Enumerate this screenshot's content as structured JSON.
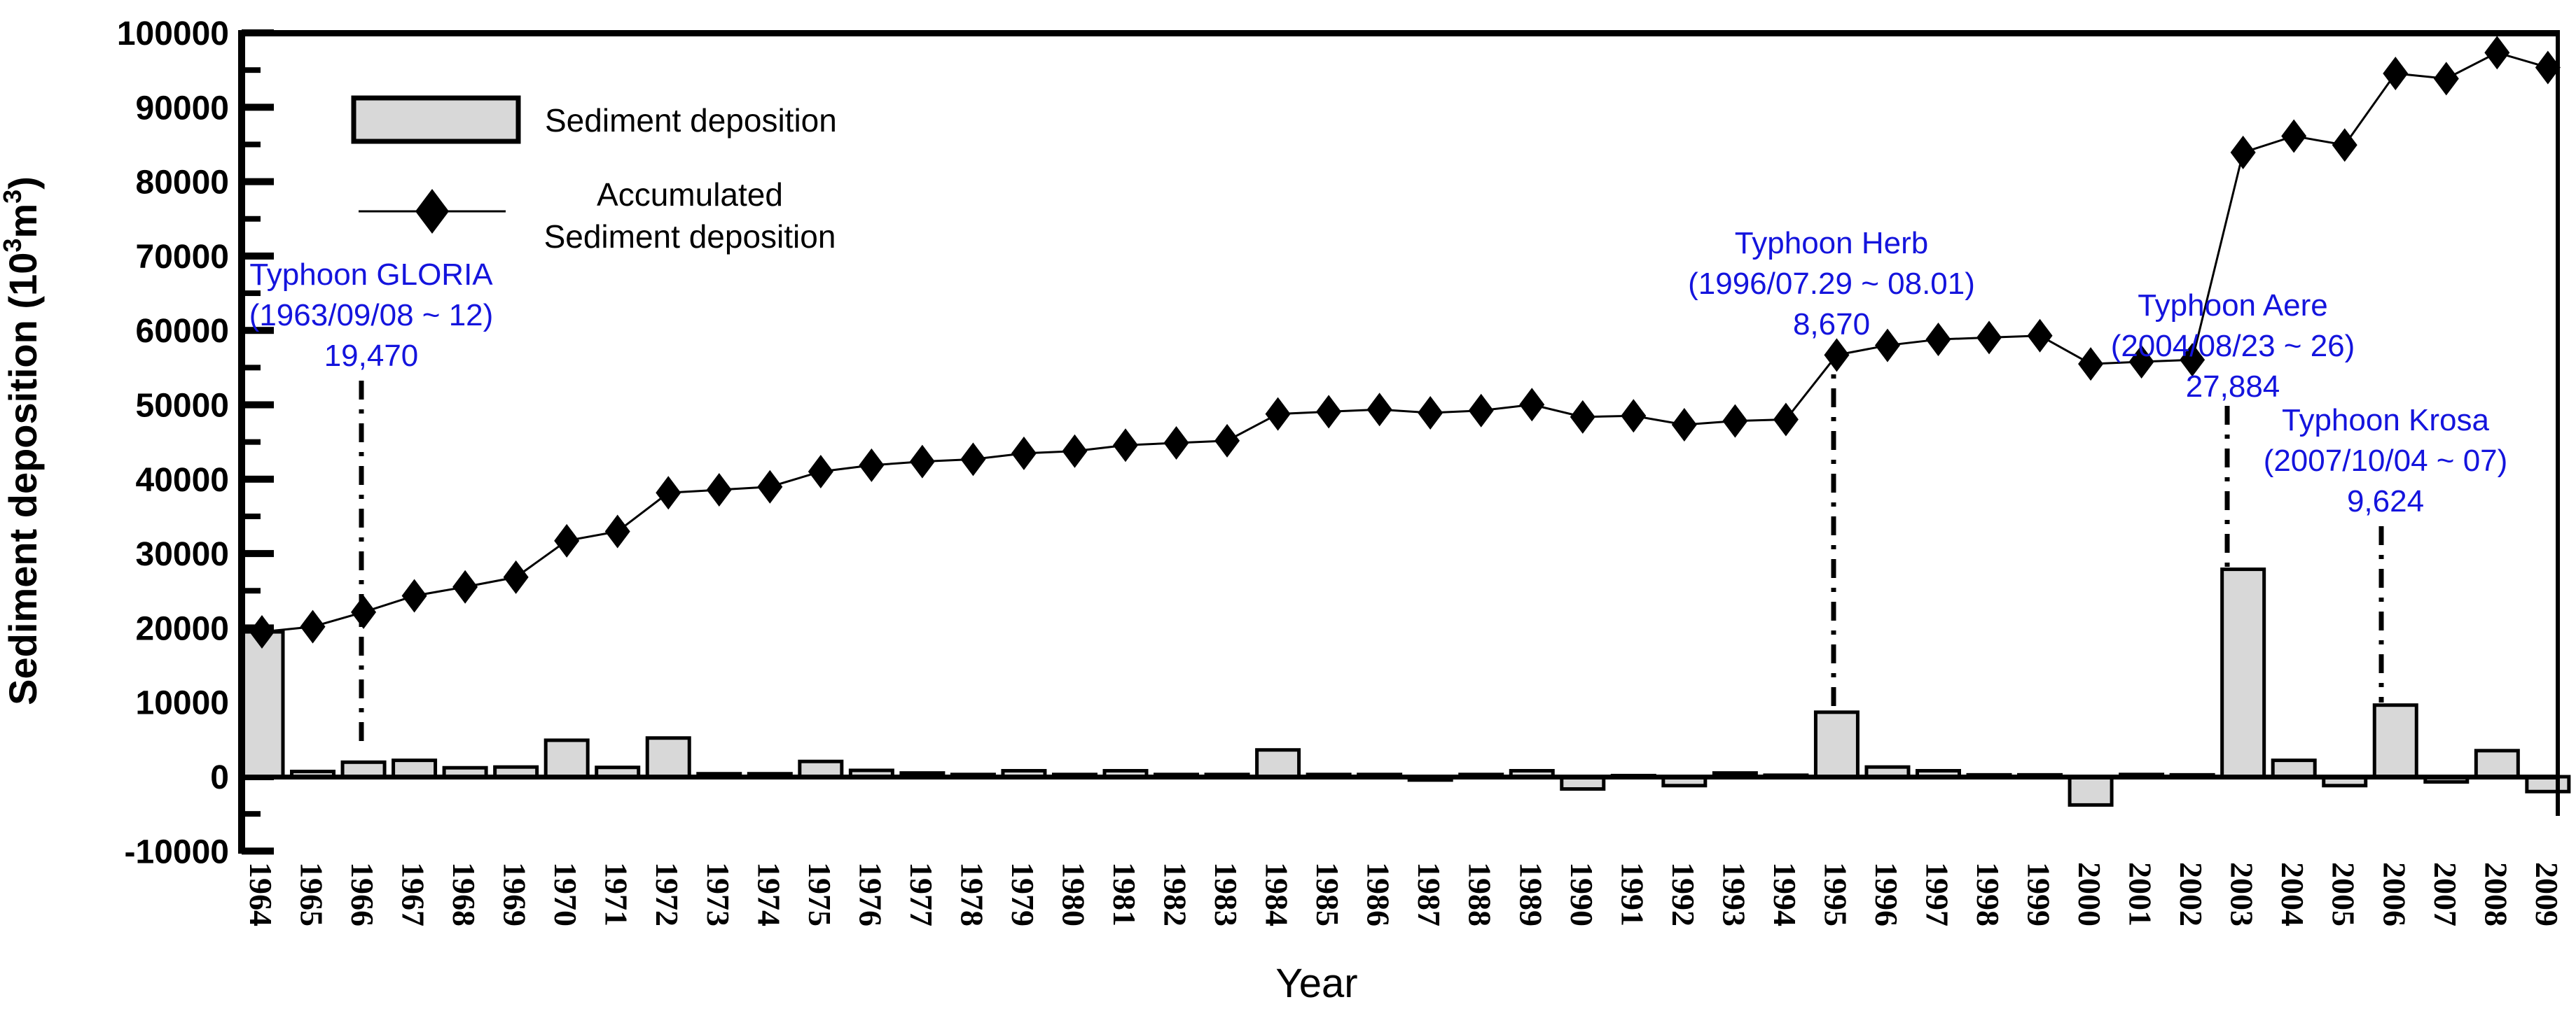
{
  "chart_data": {
    "type": "bar+line",
    "title": "",
    "xlabel": "Year",
    "ylabel_parts": [
      "Sediment deposition (10",
      "3",
      "m",
      "3",
      ")"
    ],
    "ylim": [
      -10000,
      100000
    ],
    "ytick_major_step": 10000,
    "ytick_minor_step": 5000,
    "ytick_labels": [
      "100000",
      "90000",
      "80000",
      "70000",
      "60000",
      "50000",
      "40000",
      "30000",
      "20000",
      "10000",
      "0",
      "-10000"
    ],
    "categories": [
      "1964",
      "1965",
      "1966",
      "1967",
      "1968",
      "1969",
      "1970",
      "1971",
      "1972",
      "1973",
      "1974",
      "1975",
      "1976",
      "1977",
      "1978",
      "1979",
      "1980",
      "1981",
      "1982",
      "1983",
      "1984",
      "1985",
      "1986",
      "1987",
      "1988",
      "1989",
      "1990",
      "1991",
      "1992",
      "1993",
      "1994",
      "1995",
      "1996",
      "1997",
      "1998",
      "1999",
      "2000",
      "2001",
      "2002",
      "2003",
      "2004",
      "2005",
      "2006",
      "2007",
      "2008",
      "2009"
    ],
    "series": [
      {
        "name": "Sediment deposition",
        "type": "bar",
        "values": [
          19470,
          700,
          1950,
          2200,
          1200,
          1300,
          4900,
          1250,
          5200,
          400,
          400,
          2050,
          850,
          500,
          300,
          800,
          300,
          800,
          300,
          300,
          3600,
          300,
          300,
          -450,
          300,
          800,
          -1650,
          150,
          -1200,
          500,
          200,
          8670,
          1300,
          800,
          250,
          250,
          -3800,
          300,
          250,
          27884,
          2200,
          -1200,
          9624,
          -700,
          3500,
          -2000
        ]
      },
      {
        "name": "Accumulated Sediment deposition",
        "type": "line",
        "values": [
          19470,
          20170,
          22120,
          24320,
          25520,
          26820,
          31720,
          32970,
          38170,
          38570,
          38970,
          41020,
          41870,
          42370,
          42670,
          43470,
          43770,
          44570,
          44870,
          45170,
          48770,
          49070,
          49370,
          48920,
          49220,
          50020,
          48370,
          48520,
          47320,
          47820,
          48020,
          56690,
          57990,
          58790,
          59040,
          59290,
          55490,
          55790,
          56040,
          83924,
          86124,
          84924,
          94548,
          93848,
          97348,
          95348
        ]
      }
    ],
    "legend": {
      "bar_label": "Sediment deposition",
      "line_label_lines": [
        "Accumulated",
        "Sediment deposition"
      ]
    },
    "annotations": [
      {
        "id": "typhoon-gloria",
        "lines": [
          "Typhoon GLORIA",
          "(1963/09/08 ~ 12)",
          "19,470"
        ],
        "text_x": 530,
        "first_line_y": 392,
        "pointer_x": 516,
        "pointer_y1": 544,
        "pointer_y2": 1062
      },
      {
        "id": "typhoon-herb",
        "lines": [
          "Typhoon Herb",
          "(1996/07.29 ~ 08.01)",
          "8,670"
        ],
        "text_x": 2615,
        "first_line_y": 347,
        "pointer_x": 2618,
        "pointer_y1": 494,
        "pointer_y2": 1014
      },
      {
        "id": "typhoon-aere",
        "lines": [
          "Typhoon Aere",
          "(2004/08/23 ~ 26)",
          "27,884"
        ],
        "text_x": 3188,
        "first_line_y": 436,
        "pointer_x": 3180,
        "pointer_y1": 580,
        "pointer_y2": 810
      },
      {
        "id": "typhoon-krosa",
        "lines": [
          "Typhoon Krosa",
          "(2007/10/04 ~ 07)",
          "9,624"
        ],
        "text_x": 3406,
        "first_line_y": 600,
        "pointer_x": 3400,
        "pointer_y1": 752,
        "pointer_y2": 1004
      }
    ],
    "colors": {
      "background": "#ffffff",
      "bar_fill": "#d8d8d8",
      "bar_stroke": "#000000",
      "line_color": "#000000",
      "marker_color": "#000000",
      "axis_color": "#000000",
      "annotation_color": "#1414dd"
    }
  }
}
